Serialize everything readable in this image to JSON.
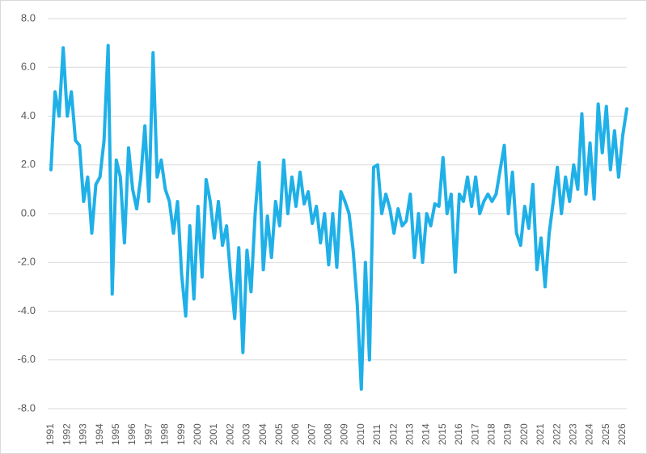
{
  "chart_data": {
    "type": "line",
    "categories": [
      "1991",
      null,
      null,
      null,
      "1992",
      null,
      null,
      null,
      "1993",
      null,
      null,
      null,
      "1994",
      null,
      null,
      null,
      "1995",
      null,
      null,
      null,
      "1996",
      null,
      null,
      null,
      "1997",
      null,
      null,
      null,
      "1998",
      null,
      null,
      null,
      "1999",
      null,
      null,
      null,
      "2000",
      null,
      null,
      null,
      "2001",
      null,
      null,
      null,
      "2002",
      null,
      null,
      null,
      "2003",
      null,
      null,
      null,
      "2004",
      null,
      null,
      null,
      "2005",
      null,
      null,
      null,
      "2006",
      null,
      null,
      null,
      "2007",
      null,
      null,
      null,
      "2008",
      null,
      null,
      null,
      "2009",
      null,
      null,
      null,
      "2010",
      null,
      null,
      null,
      "2011",
      null,
      null,
      null,
      "2012",
      null,
      null,
      null,
      "2013",
      null,
      null,
      null,
      "2014",
      null,
      null,
      null,
      "2015",
      null,
      null,
      null,
      "2016",
      null,
      null,
      null,
      "2017",
      null,
      null,
      null,
      "2018",
      null,
      null,
      null,
      "2019",
      null,
      null,
      null,
      "2020",
      null,
      null,
      null,
      "2021",
      null,
      null,
      null,
      "2022",
      null,
      null,
      null,
      "2023",
      null,
      null,
      null,
      "2024",
      null,
      null,
      null,
      "2025",
      null,
      null,
      null,
      "2026",
      null
    ],
    "values": [
      1.8,
      5.0,
      4.0,
      6.8,
      4.0,
      5.0,
      3.0,
      2.8,
      0.5,
      1.5,
      -0.8,
      1.2,
      1.5,
      3.0,
      6.9,
      -3.3,
      2.2,
      1.5,
      -1.2,
      2.7,
      1.0,
      0.2,
      1.5,
      3.6,
      0.5,
      6.6,
      1.5,
      2.2,
      1.0,
      0.5,
      -0.8,
      0.5,
      -2.5,
      -4.2,
      -0.5,
      -3.5,
      0.3,
      -2.6,
      1.4,
      0.5,
      -1.0,
      0.5,
      -1.3,
      -0.5,
      -2.6,
      -4.3,
      -1.4,
      -5.7,
      -1.5,
      -3.2,
      0.0,
      2.1,
      -2.3,
      -0.1,
      -1.8,
      0.5,
      -0.5,
      2.2,
      0.0,
      1.5,
      0.3,
      1.7,
      0.4,
      0.9,
      -0.4,
      0.3,
      -1.2,
      0.0,
      -2.1,
      0.0,
      -2.2,
      0.9,
      0.5,
      0.0,
      -1.5,
      -3.7,
      -7.2,
      -2.0,
      -6.0,
      1.9,
      2.0,
      0.0,
      0.8,
      0.2,
      -0.8,
      0.2,
      -0.5,
      -0.3,
      0.8,
      -1.8,
      0.0,
      -2.0,
      0.0,
      -0.5,
      0.4,
      0.3,
      2.3,
      0.0,
      0.8,
      -2.4,
      0.8,
      0.5,
      1.5,
      0.3,
      1.5,
      0.0,
      0.5,
      0.8,
      0.5,
      0.8,
      1.8,
      2.8,
      0.0,
      1.7,
      -0.8,
      -1.3,
      0.3,
      -0.6,
      1.2,
      -2.3,
      -1.0,
      -3.0,
      -0.8,
      0.5,
      1.9,
      0.0,
      1.5,
      0.5,
      2.0,
      1.0,
      4.1,
      0.8,
      2.9,
      0.6,
      4.5,
      2.5,
      4.4,
      1.8,
      3.4,
      1.5,
      3.2,
      4.3
    ],
    "color": "#1fb0e8",
    "ylim": [
      -8,
      8
    ],
    "yticks": [
      {
        "value": -8,
        "label": "-8.0"
      },
      {
        "value": -6,
        "label": "-6.0"
      },
      {
        "value": -4,
        "label": "-4.0"
      },
      {
        "value": -2,
        "label": "-2.0"
      },
      {
        "value": 0,
        "label": "0.0"
      },
      {
        "value": 2,
        "label": "2.0"
      },
      {
        "value": 4,
        "label": "4.0"
      },
      {
        "value": 6,
        "label": "6.0"
      },
      {
        "value": 8,
        "label": "8.0"
      }
    ],
    "grid": true
  }
}
